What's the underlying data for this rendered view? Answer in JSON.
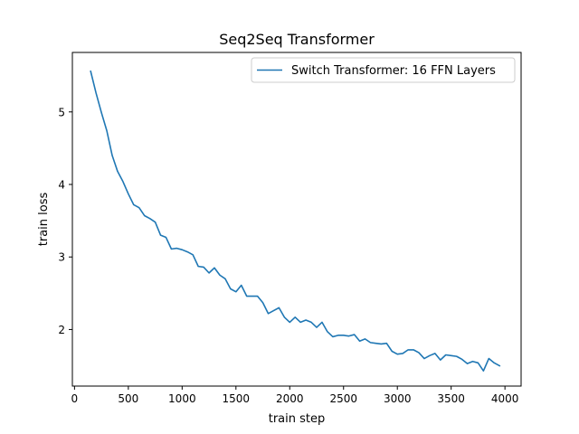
{
  "chart_data": {
    "type": "line",
    "title": "Seq2Seq Transformer",
    "xlabel": "train step",
    "ylabel": "train loss",
    "xlim": [
      -20,
      4150
    ],
    "ylim": [
      1.22,
      5.82
    ],
    "xticks": [
      0,
      500,
      1000,
      1500,
      2000,
      2500,
      3000,
      3500,
      4000
    ],
    "yticks": [
      2,
      3,
      4,
      5
    ],
    "grid": false,
    "legend_position": "top-right",
    "series": [
      {
        "name": "Switch Transformer: 16 FFN Layers",
        "color": "#1f77b4",
        "x": [
          150,
          200,
          250,
          300,
          350,
          400,
          450,
          500,
          550,
          600,
          650,
          700,
          750,
          800,
          850,
          900,
          950,
          1000,
          1050,
          1100,
          1150,
          1200,
          1250,
          1300,
          1350,
          1400,
          1450,
          1500,
          1550,
          1600,
          1650,
          1700,
          1750,
          1800,
          1850,
          1900,
          1950,
          2000,
          2050,
          2100,
          2150,
          2200,
          2250,
          2300,
          2350,
          2400,
          2450,
          2500,
          2550,
          2600,
          2650,
          2700,
          2750,
          2800,
          2850,
          2900,
          2950,
          3000,
          3050,
          3100,
          3150,
          3200,
          3250,
          3300,
          3350,
          3400,
          3450,
          3500,
          3550,
          3600,
          3650,
          3700,
          3750,
          3800,
          3850,
          3900,
          3950
        ],
        "y": [
          5.56,
          5.26,
          4.99,
          4.74,
          4.4,
          4.18,
          4.04,
          3.87,
          3.72,
          3.68,
          3.57,
          3.53,
          3.48,
          3.3,
          3.27,
          3.11,
          3.12,
          3.1,
          3.07,
          3.03,
          2.87,
          2.86,
          2.78,
          2.85,
          2.75,
          2.7,
          2.56,
          2.52,
          2.61,
          2.46,
          2.46,
          2.46,
          2.37,
          2.22,
          2.26,
          2.3,
          2.17,
          2.1,
          2.17,
          2.1,
          2.13,
          2.1,
          2.03,
          2.1,
          1.97,
          1.9,
          1.92,
          1.92,
          1.91,
          1.93,
          1.84,
          1.87,
          1.82,
          1.81,
          1.8,
          1.81,
          1.7,
          1.66,
          1.67,
          1.72,
          1.72,
          1.68,
          1.6,
          1.64,
          1.67,
          1.58,
          1.65,
          1.64,
          1.63,
          1.59,
          1.53,
          1.56,
          1.54,
          1.43,
          1.6,
          1.54,
          1.5
        ]
      }
    ]
  }
}
